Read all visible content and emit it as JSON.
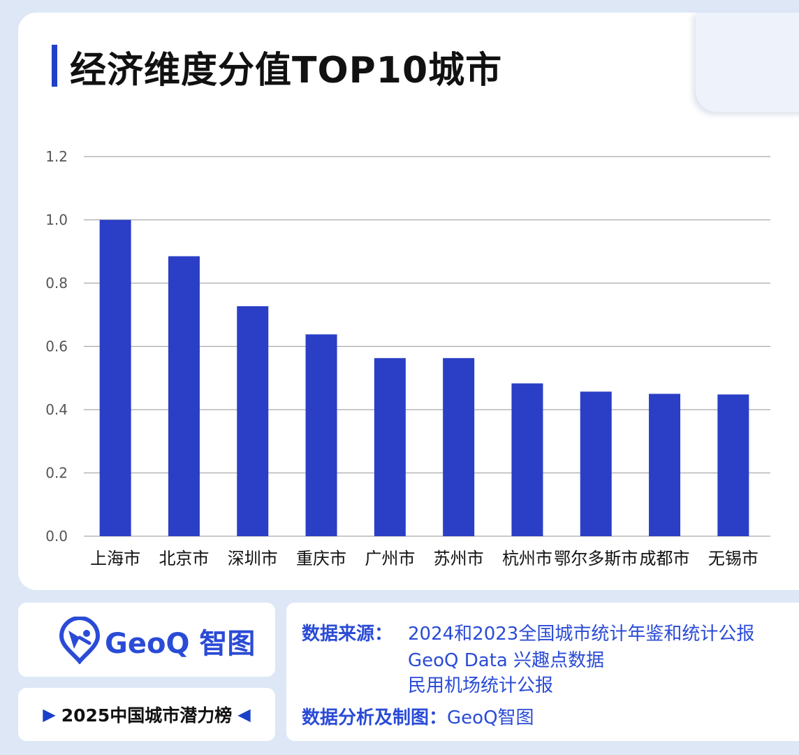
{
  "title": "经济维度分值TOP10城市",
  "chart_data": {
    "type": "bar",
    "title": "经济维度分值TOP10城市",
    "categories": [
      "上海市",
      "北京市",
      "深圳市",
      "重庆市",
      "广州市",
      "苏州市",
      "杭州市",
      "鄂尔多斯市",
      "成都市",
      "无锡市"
    ],
    "values": [
      1.0,
      0.885,
      0.727,
      0.638,
      0.563,
      0.563,
      0.483,
      0.457,
      0.45,
      0.448
    ],
    "ylim": [
      0,
      1.2
    ],
    "yticks": [
      "0.0",
      "0.2",
      "0.4",
      "0.6",
      "0.8",
      "1.0",
      "1.2"
    ],
    "xlabel": "",
    "ylabel": "",
    "grid": true,
    "bar_color": "#2a3fc6",
    "grid_color": "#a9a9a9",
    "tick_color": "#555555"
  },
  "logo": {
    "text": "GeoQ 智图",
    "icon": "geoq-pin-icon"
  },
  "ranking_label": "2025中国城市潜力榜",
  "source": {
    "label": "数据来源：",
    "lines": [
      "2024和2023全国城市统计年鉴和统计公报",
      "GeoQ Data 兴趣点数据",
      "民用机场统计公报"
    ]
  },
  "analysis": {
    "label": "数据分析及制图：",
    "value": "GeoQ智图"
  },
  "colors": {
    "accent": "#2a4bd6",
    "background": "#dde7f6"
  }
}
